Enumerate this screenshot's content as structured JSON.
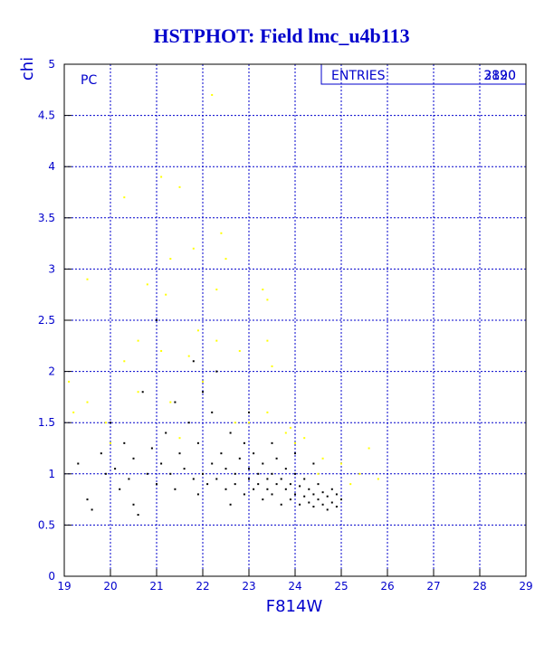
{
  "chart_data": {
    "type": "scatter",
    "title": "HSTPHOT: Field lmc_u4b113",
    "y_label": "chi",
    "x_label": "F814W",
    "annotation": "PC",
    "stats_label": "ENTRIES",
    "entries": [
      "3190",
      "2820"
    ],
    "xlim": [
      19,
      29
    ],
    "ylim": [
      0,
      5
    ],
    "xticks": [
      19,
      20,
      21,
      22,
      23,
      24,
      25,
      26,
      27,
      28,
      29
    ],
    "yticks": [
      0,
      0.5,
      1,
      1.5,
      2,
      2.5,
      3,
      3.5,
      4,
      4.5,
      5
    ],
    "grid": true,
    "series": [
      {
        "color": "#ffff00",
        "x": [
          19.5,
          20.3,
          21.1,
          21.5,
          21.3,
          21.8,
          22.4,
          22.5,
          22.2,
          23.3,
          23.4,
          20.8,
          21.2,
          20.6,
          21.1,
          21.7,
          22.3,
          22.8,
          23.4,
          23.5,
          19.5,
          19.9,
          20.3,
          20.6,
          21.3,
          22.0,
          22.7,
          23.4,
          23.8,
          24.2,
          24.6,
          25.0,
          25.4,
          25.6,
          25.8,
          19.2,
          20.0,
          21.5,
          23.0,
          24.0,
          24.5,
          19.1,
          21.9,
          22.3,
          25.2,
          23.9
        ],
        "y": [
          2.9,
          3.7,
          3.9,
          3.8,
          3.1,
          3.2,
          3.35,
          3.1,
          4.7,
          2.8,
          2.7,
          2.85,
          2.75,
          2.3,
          2.2,
          2.15,
          2.3,
          2.2,
          2.3,
          2.05,
          1.7,
          1.5,
          2.1,
          1.8,
          1.7,
          1.9,
          1.5,
          1.6,
          1.4,
          1.35,
          1.15,
          1.1,
          1.0,
          1.25,
          0.95,
          1.6,
          1.3,
          1.35,
          1.5,
          1.3,
          1.0,
          1.9,
          2.4,
          2.8,
          0.9,
          1.45
        ]
      },
      {
        "color": "#000000",
        "x": [
          19.3,
          19.5,
          19.6,
          19.8,
          19.9,
          20.1,
          20.2,
          20.3,
          20.4,
          20.5,
          20.6,
          20.7,
          20.8,
          20.9,
          21.0,
          21.0,
          21.1,
          21.2,
          21.3,
          21.4,
          21.5,
          21.6,
          21.7,
          21.8,
          21.9,
          22.0,
          22.0,
          22.1,
          22.2,
          22.3,
          22.3,
          22.4,
          22.5,
          22.5,
          22.6,
          22.7,
          22.7,
          22.8,
          22.9,
          22.9,
          23.0,
          23.0,
          23.1,
          23.1,
          23.2,
          23.2,
          23.3,
          23.3,
          23.4,
          23.4,
          23.5,
          23.5,
          23.6,
          23.6,
          23.7,
          23.7,
          23.8,
          23.8,
          23.9,
          23.9,
          24.0,
          24.0,
          24.1,
          24.1,
          24.2,
          24.2,
          24.3,
          24.3,
          24.4,
          24.4,
          24.5,
          24.5,
          24.6,
          24.6,
          24.7,
          24.7,
          24.8,
          24.8,
          24.9,
          24.9,
          25.0,
          22.2,
          23.5,
          24.0,
          21.4,
          20.0,
          21.8,
          23.0,
          24.4,
          22.6,
          21.9,
          20.5
        ],
        "y": [
          1.1,
          0.75,
          0.65,
          1.2,
          1.0,
          1.05,
          0.85,
          1.3,
          0.95,
          1.15,
          0.6,
          1.8,
          1.0,
          1.25,
          2.5,
          0.9,
          1.1,
          1.4,
          1.0,
          0.85,
          1.2,
          1.05,
          1.5,
          0.95,
          1.3,
          1.0,
          1.8,
          0.9,
          1.1,
          2.0,
          0.95,
          1.2,
          0.85,
          1.05,
          1.4,
          0.9,
          1.0,
          1.15,
          0.8,
          1.3,
          0.95,
          1.05,
          0.85,
          1.2,
          0.9,
          1.0,
          0.75,
          1.1,
          0.95,
          0.85,
          1.0,
          0.8,
          0.9,
          1.15,
          0.7,
          0.95,
          0.85,
          1.05,
          0.75,
          0.9,
          0.8,
          1.0,
          0.7,
          0.88,
          0.78,
          0.95,
          0.72,
          0.85,
          0.68,
          0.8,
          0.75,
          0.9,
          0.7,
          0.82,
          0.65,
          0.78,
          0.72,
          0.85,
          0.68,
          0.8,
          0.75,
          1.6,
          1.3,
          1.2,
          1.7,
          1.5,
          2.1,
          1.6,
          1.1,
          0.7,
          0.8,
          0.7
        ]
      }
    ]
  }
}
